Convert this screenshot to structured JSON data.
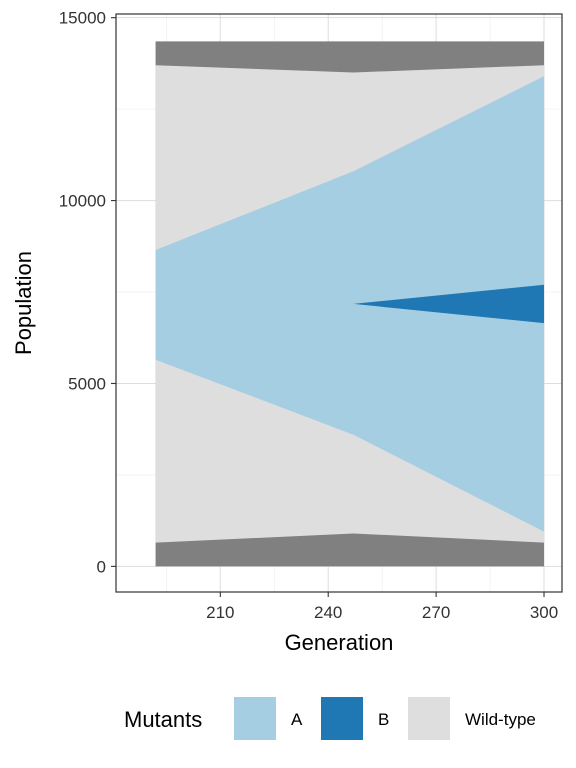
{
  "chart_data": {
    "type": "area",
    "title": "",
    "xlabel": "Generation",
    "ylabel": "Population",
    "xlim": [
      181,
      305
    ],
    "ylim": [
      -700,
      15100
    ],
    "x_ticks": [
      210,
      240,
      270,
      300
    ],
    "y_ticks": [
      0,
      5000,
      10000,
      15000
    ],
    "x_tick_labels": [
      "210",
      "240",
      "270",
      "300"
    ],
    "y_tick_labels": [
      "0",
      "5000",
      "10000",
      "15000"
    ],
    "grid": true,
    "x": [
      192,
      247,
      300
    ],
    "series": [
      {
        "name": "",
        "key": "outer",
        "color": "#808080",
        "lower": [
          0,
          0,
          0
        ],
        "upper": [
          14350,
          14350,
          14350
        ]
      },
      {
        "name": "Wild-type",
        "key": "wild",
        "color": "#dedede",
        "lower": [
          650,
          900,
          650
        ],
        "upper": [
          13700,
          13500,
          13700
        ]
      },
      {
        "name": "A",
        "key": "a",
        "color": "#a6cee3",
        "lower": [
          5650,
          3600,
          950
        ],
        "upper": [
          8650,
          10800,
          13400
        ]
      },
      {
        "name": "B",
        "key": "b",
        "color": "#1f78b4",
        "lower": [
          7175,
          7175,
          6650
        ],
        "upper": [
          7175,
          7175,
          7700
        ]
      }
    ],
    "legend": {
      "title": "Mutants",
      "position": "bottom",
      "items": [
        {
          "label": "A",
          "color": "#a6cee3"
        },
        {
          "label": "B",
          "color": "#1f78b4"
        },
        {
          "label": "Wild-type",
          "color": "#dedede"
        }
      ]
    }
  }
}
